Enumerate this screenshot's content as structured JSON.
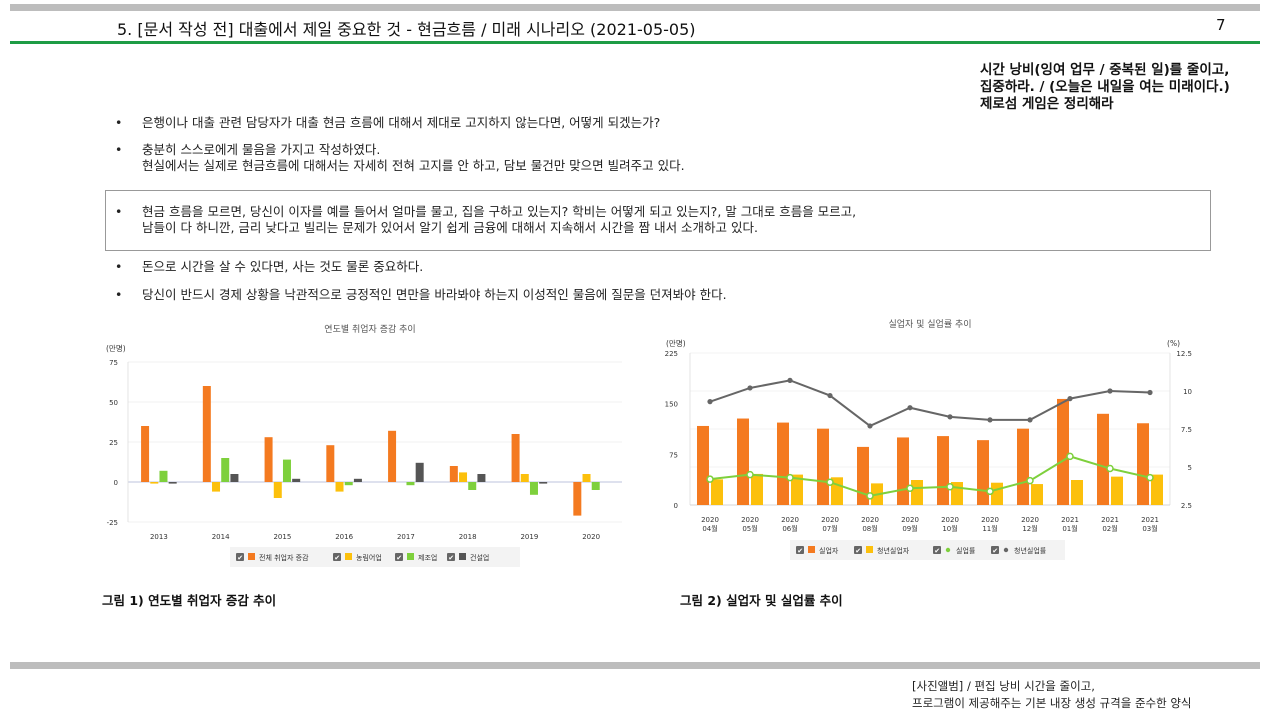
{
  "header": {
    "title": "5. [문서 작성 전] 대출에서 제일 중요한 것 - 현금흐름 / 미래 시나리오 (2021-05-05)",
    "page_number": "7"
  },
  "side_note": [
    "시간 낭비(잉여 업무 / 중복된 일)를 줄이고,",
    "집중하라. / (오늘은 내일을 여는 미래이다.)",
    "제로섬 게임은 정리해라"
  ],
  "bullets": {
    "b1": [
      "은행이나 대출 관련 담당자가 대출 현금 흐름에 대해서 제대로 고지하지 않는다면, 어떻게 되겠는가?"
    ],
    "b2": [
      "충분히 스스로에게 물음을 가지고 작성하였다.",
      "현실에서는 실제로 현금흐름에 대해서는 자세히 전혀 고지를 안 하고, 담보 물건만 맞으면 빌려주고 있다."
    ],
    "b3": [
      "현금 흐름을 모르면, 당신이 이자를 예를 들어서 얼마를 물고, 집을 구하고 있는지? 학비는 어떻게 되고 있는지?, 말 그대로 흐름을 모르고,",
      "남들이 다 하니깐, 금리 낮다고 빌리는 문제가 있어서 알기 쉽게 금융에 대해서 지속해서 시간을 짬 내서 소개하고 있다."
    ],
    "b4": [
      "돈으로 시간을 살 수 있다면, 사는 것도 물론 중요하다."
    ],
    "b5": [
      "당신이 반드시 경제 상황을 낙관적으로 긍정적인 면만을 바라봐야 하는지 이성적인 물음에 질문을 던져봐야 한다."
    ]
  },
  "bullet_marker": "•",
  "chart_data": [
    {
      "type": "bar",
      "title": "연도별 취업자 증감 추이",
      "ylabel": "(만명)",
      "ylim": [
        -25,
        75
      ],
      "yticks": [
        -25,
        0,
        25,
        50,
        75
      ],
      "categories": [
        "2013",
        "2014",
        "2015",
        "2016",
        "2017",
        "2018",
        "2019",
        "2020"
      ],
      "series": [
        {
          "name": "전체 취업자 증감",
          "color": "#f47a20",
          "values": [
            35,
            60,
            28,
            23,
            32,
            10,
            30,
            -21
          ]
        },
        {
          "name": "농림어업",
          "color": "#fcc00c",
          "values": [
            -1,
            -6,
            -10,
            -6,
            0,
            6,
            5,
            5
          ]
        },
        {
          "name": "제조업",
          "color": "#7ed03c",
          "values": [
            7,
            15,
            14,
            -2,
            -2,
            -5,
            -8,
            -5
          ]
        },
        {
          "name": "건설업",
          "color": "#555555",
          "values": [
            -1,
            5,
            2,
            2,
            12,
            5,
            -1,
            0
          ]
        }
      ],
      "legend_check": "✔",
      "caption": "그림 1) 연도별 취업자 증감 추이"
    },
    {
      "type": "bar+line",
      "title": "실업자 및 실업률 추이",
      "ylabel": "(만명)",
      "y2label": "(%)",
      "ylim": [
        0,
        225
      ],
      "yticks": [
        0,
        75,
        150,
        225
      ],
      "y2lim": [
        2.5,
        12.5
      ],
      "y2ticks": [
        "2.5",
        "5",
        "7.5",
        "10",
        "12.5"
      ],
      "categories": [
        [
          "2020",
          "04월"
        ],
        [
          "2020",
          "05월"
        ],
        [
          "2020",
          "06월"
        ],
        [
          "2020",
          "07월"
        ],
        [
          "2020",
          "08월"
        ],
        [
          "2020",
          "09월"
        ],
        [
          "2020",
          "10월"
        ],
        [
          "2020",
          "11월"
        ],
        [
          "2020",
          "12월"
        ],
        [
          "2021",
          "01월"
        ],
        [
          "2021",
          "02월"
        ],
        [
          "2021",
          "03월"
        ]
      ],
      "bars": [
        {
          "name": "실업자",
          "color": "#f47a20",
          "values": [
            117,
            128,
            122,
            113,
            86,
            100,
            102,
            96,
            113,
            157,
            135,
            121
          ]
        },
        {
          "name": "청년실업자",
          "color": "#fcc00c",
          "values": [
            38,
            46,
            45,
            41,
            32,
            37,
            34,
            33,
            31,
            37,
            42,
            45
          ]
        }
      ],
      "lines": [
        {
          "name": "실업률",
          "color": "#7ed03c",
          "values": [
            4.2,
            4.5,
            4.3,
            4.0,
            3.1,
            3.6,
            3.7,
            3.4,
            4.1,
            5.7,
            4.9,
            4.3
          ]
        },
        {
          "name": "청년실업률",
          "color": "#666666",
          "values": [
            9.3,
            10.2,
            10.7,
            9.7,
            7.7,
            8.9,
            8.3,
            8.1,
            8.1,
            9.5,
            10.0,
            9.9
          ]
        }
      ],
      "legend_check": "✔",
      "caption": "그림 2) 실업자 및 실업률 추이"
    }
  ],
  "footer": [
    "[사진앨범] / 편집 낭비 시간을 줄이고,",
    "프로그램이 제공해주는 기본 내장 생성 규격을 준수한 양식"
  ]
}
